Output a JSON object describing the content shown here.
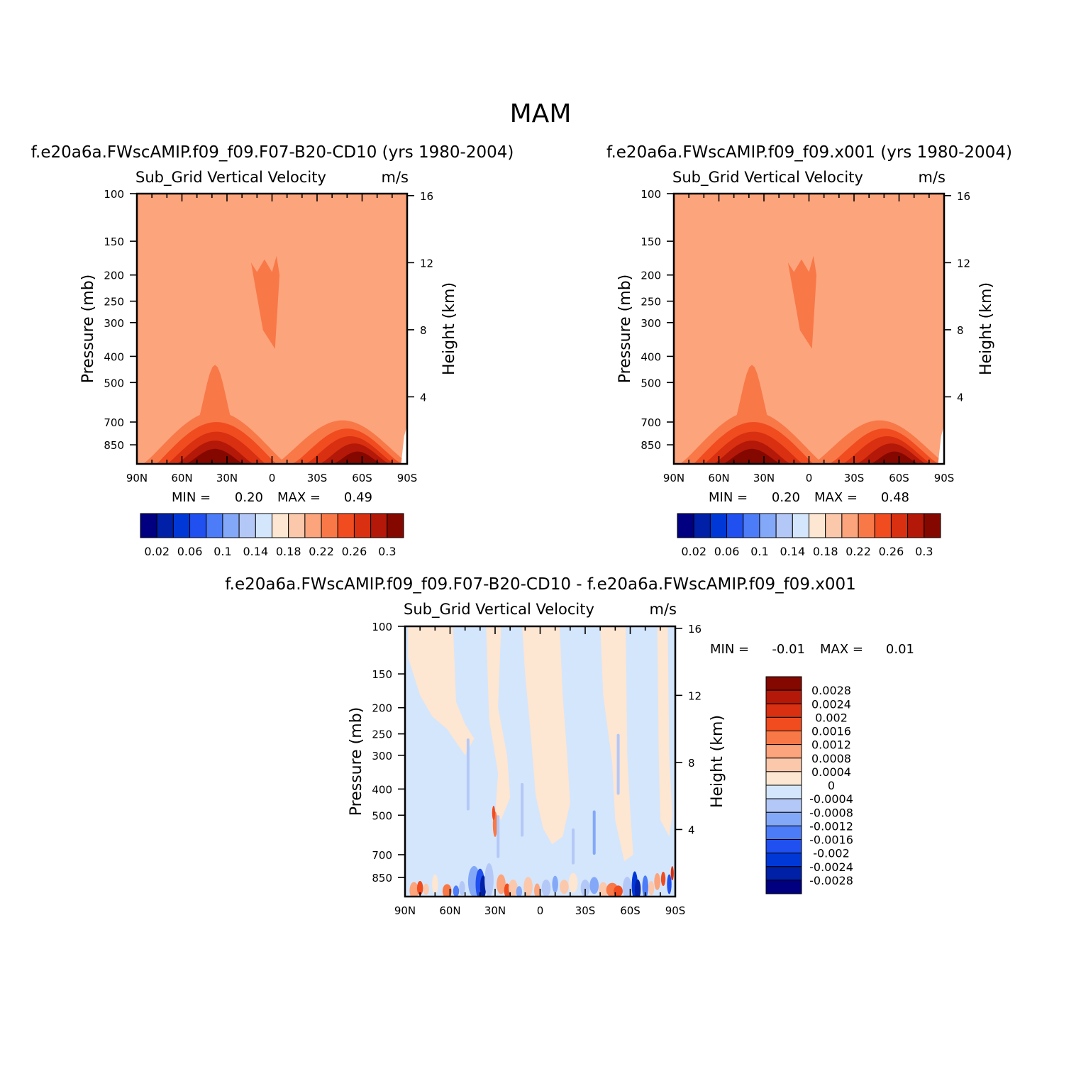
{
  "figure": {
    "title": "MAM"
  },
  "colors": {
    "ramp": [
      "#000080",
      "#0020a8",
      "#0038d8",
      "#2050f0",
      "#4c7cf8",
      "#84a8f8",
      "#b4c8f8",
      "#d4e6fc",
      "#fde6d2",
      "#fcc8ac",
      "#fca47c",
      "#f87848",
      "#f04c20",
      "#d83010",
      "#b41808",
      "#840800"
    ]
  },
  "chart_data": [
    {
      "type": "heatmap",
      "case_title": "f.e20a6a.FWscAMIP.f09_f09.F07-B20-CD10 (yrs 1980-2004)",
      "variable": "Sub_Grid Vertical Velocity",
      "units": "m/s",
      "ylabel_left": "Pressure (mb)",
      "ylabel_right": "Height (km)",
      "x_ticks": [
        "90N",
        "60N",
        "30N",
        "0",
        "30S",
        "60S",
        "90S"
      ],
      "y_ticks_left": [
        "100",
        "150",
        "200",
        "250",
        "300",
        "400",
        "500",
        "700",
        "850"
      ],
      "y_ticks_right": [
        "16",
        "12",
        "8",
        "4"
      ],
      "min_label": "MIN =",
      "min_value": "0.20",
      "max_label": "MAX =",
      "max_value": "0.49",
      "colorbar_labels": [
        "0.02",
        "0.06",
        "0.1",
        "0.14",
        "0.18",
        "0.22",
        "0.26",
        "0.3"
      ],
      "contour_levels": [
        0.02,
        0.04,
        0.06,
        0.08,
        0.1,
        0.12,
        0.14,
        0.16,
        0.18,
        0.2,
        0.22,
        0.24,
        0.26,
        0.28,
        0.3
      ],
      "background_value": 0.21
    },
    {
      "type": "heatmap",
      "case_title": "f.e20a6a.FWscAMIP.f09_f09.x001 (yrs 1980-2004)",
      "variable": "Sub_Grid Vertical Velocity",
      "units": "m/s",
      "ylabel_left": "Pressure (mb)",
      "ylabel_right": "Height (km)",
      "x_ticks": [
        "90N",
        "60N",
        "30N",
        "0",
        "30S",
        "60S",
        "90S"
      ],
      "y_ticks_left": [
        "100",
        "150",
        "200",
        "250",
        "300",
        "400",
        "500",
        "700",
        "850"
      ],
      "y_ticks_right": [
        "16",
        "12",
        "8",
        "4"
      ],
      "min_label": "MIN =",
      "min_value": "0.20",
      "max_label": "MAX =",
      "max_value": "0.48",
      "colorbar_labels": [
        "0.02",
        "0.06",
        "0.1",
        "0.14",
        "0.18",
        "0.22",
        "0.26",
        "0.3"
      ],
      "contour_levels": [
        0.02,
        0.04,
        0.06,
        0.08,
        0.1,
        0.12,
        0.14,
        0.16,
        0.18,
        0.2,
        0.22,
        0.24,
        0.26,
        0.28,
        0.3
      ],
      "background_value": 0.21
    },
    {
      "type": "heatmap",
      "case_title": "f.e20a6a.FWscAMIP.f09_f09.F07-B20-CD10 - f.e20a6a.FWscAMIP.f09_f09.x001",
      "variable": "Sub_Grid Vertical Velocity",
      "units": "m/s",
      "ylabel_left": "Pressure (mb)",
      "ylabel_right": "Height (km)",
      "x_ticks": [
        "90N",
        "60N",
        "30N",
        "0",
        "30S",
        "60S",
        "90S"
      ],
      "y_ticks_left": [
        "100",
        "150",
        "200",
        "250",
        "300",
        "400",
        "500",
        "700",
        "850"
      ],
      "y_ticks_right": [
        "16",
        "12",
        "8",
        "4"
      ],
      "min_label": "MIN =",
      "min_value": "-0.01",
      "max_label": "MAX =",
      "max_value": "0.01",
      "colorbar_labels": [
        "0.0028",
        "0.0024",
        "0.002",
        "0.0016",
        "0.0012",
        "0.0008",
        "0.0004",
        "0",
        "-0.0004",
        "-0.0008",
        "-0.0012",
        "-0.0016",
        "-0.002",
        "-0.0024",
        "-0.0028"
      ],
      "contour_levels": [
        -0.0028,
        -0.0024,
        -0.002,
        -0.0016,
        -0.0012,
        -0.0008,
        -0.0004,
        0,
        0.0004,
        0.0008,
        0.0012,
        0.0016,
        0.002,
        0.0024,
        0.0028
      ]
    }
  ]
}
